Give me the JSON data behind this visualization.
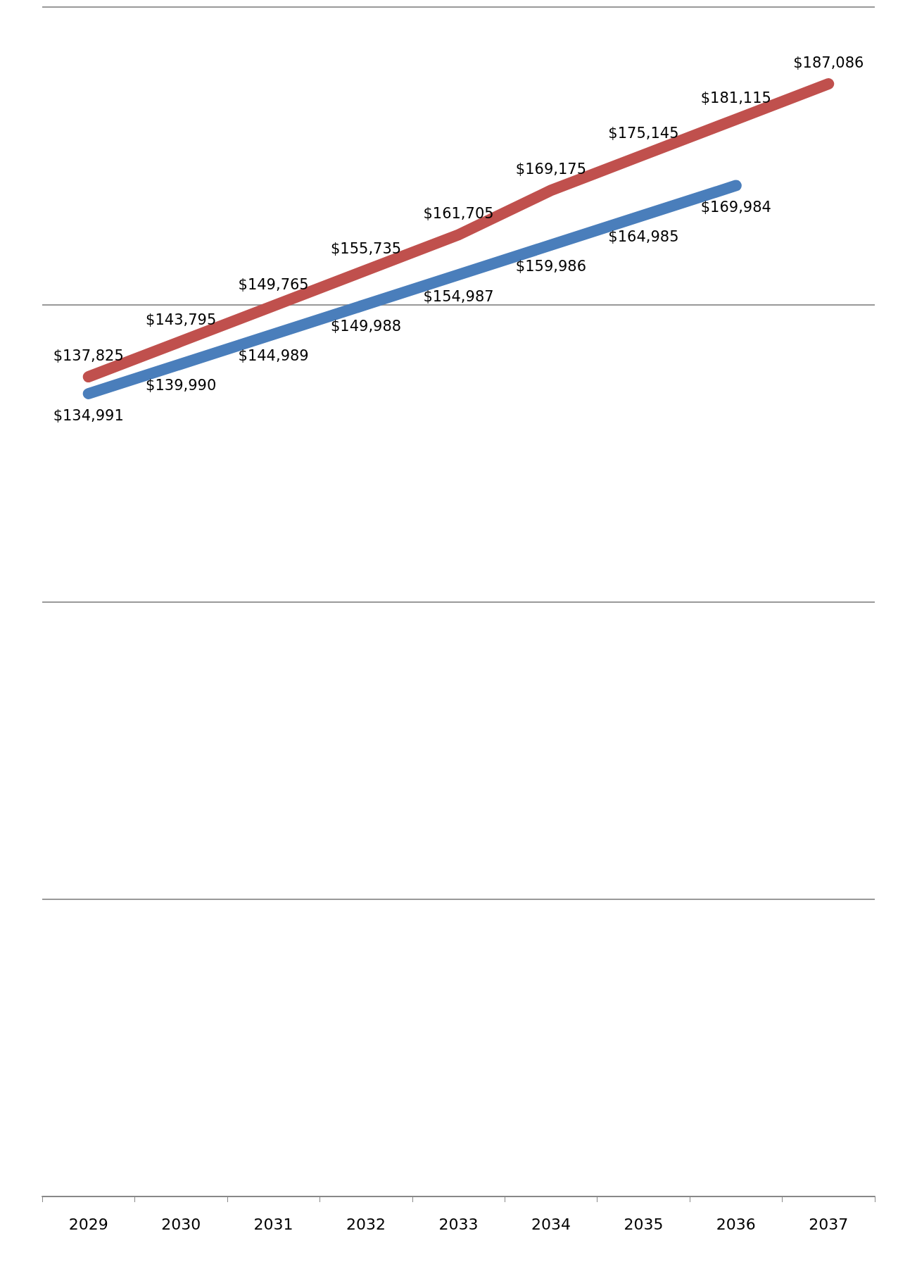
{
  "chart_data": {
    "type": "line",
    "categories": [
      "2029",
      "2030",
      "2031",
      "2032",
      "2033",
      "2034",
      "2035",
      "2036",
      "2037"
    ],
    "series": [
      {
        "color": "#4a7ebb",
        "values": [
          134991,
          139990,
          144989,
          149988,
          154987,
          159986,
          164985,
          169984,
          null
        ],
        "value_labels": [
          "$134,991",
          "$139,990",
          "$144,989",
          "$149,988",
          "$154,987",
          "$159,986",
          "$164,985",
          "$169,984",
          null
        ]
      },
      {
        "color": "#c0504d",
        "values": [
          137825,
          143795,
          149765,
          155735,
          161705,
          169175,
          175145,
          181115,
          187086
        ],
        "value_labels": [
          "$137,825",
          "$143,795",
          "$149,765",
          "$155,735",
          "$161,705",
          "$169,175",
          "$175,145",
          "$181,115",
          "$187,086"
        ]
      }
    ],
    "ylim": [
      0,
      200000
    ],
    "yticks": [
      {
        "value": 0,
        "label": null
      },
      {
        "value": 50000,
        "label": null
      },
      {
        "value": 100000,
        "label": null
      },
      {
        "value": 150000,
        "label": null
      },
      {
        "value": 200000,
        "label": null
      }
    ],
    "tick_labels": "x",
    "grid": "y",
    "marker": "none",
    "line_style": "solid"
  }
}
